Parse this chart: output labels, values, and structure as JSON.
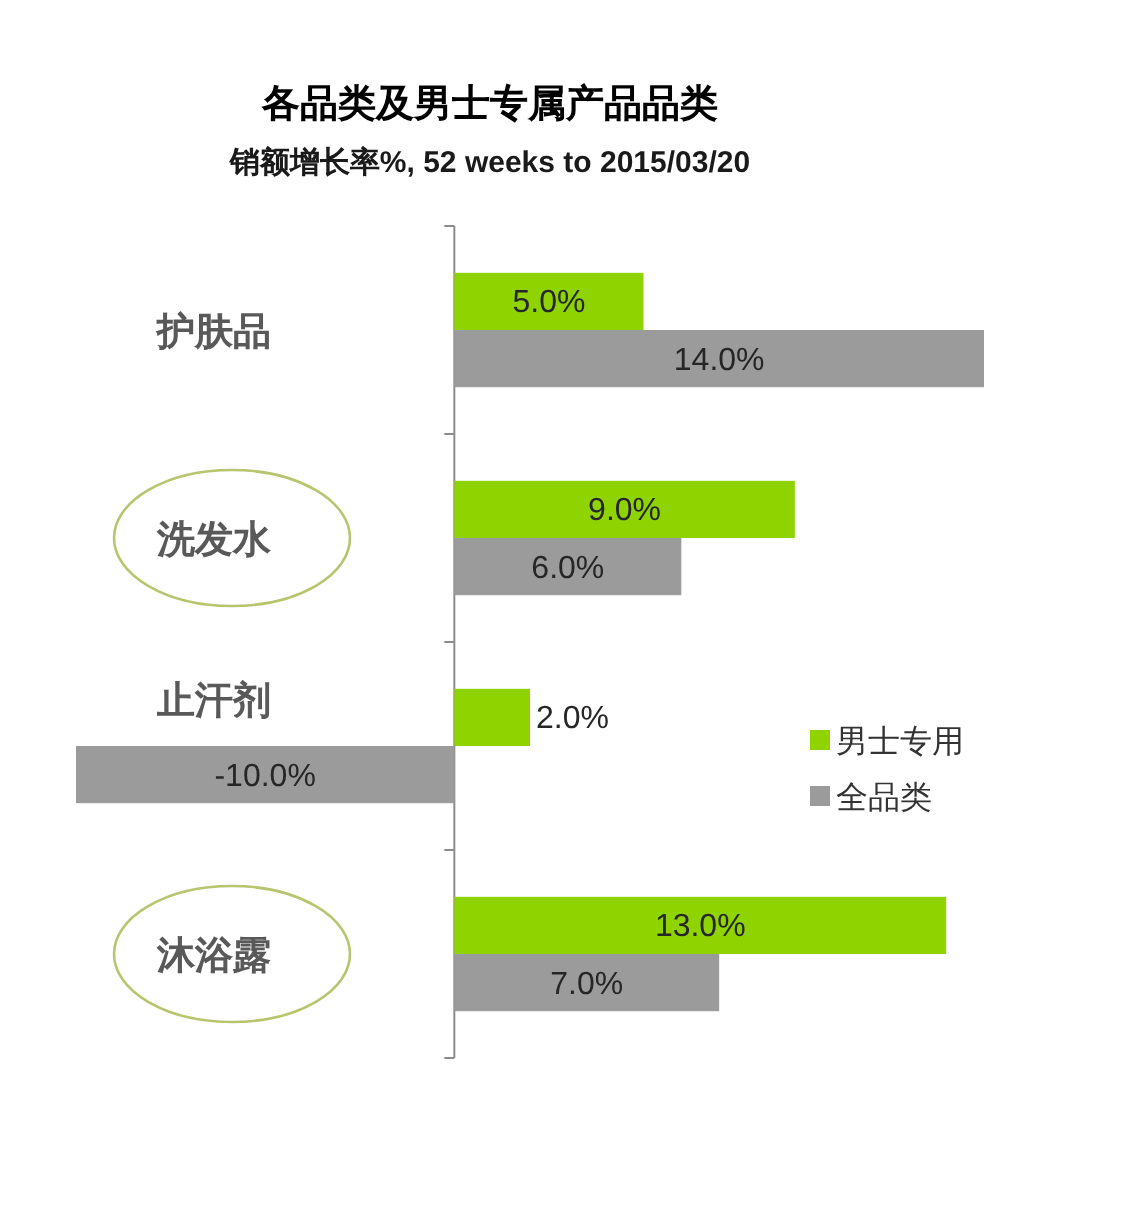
{
  "chart_data": {
    "type": "bar",
    "orientation": "horizontal",
    "title": "各品类及男士专属产品品类",
    "subtitle": "销额增长率%, 52 weeks to 2015/03/20",
    "categories": [
      "护肤品",
      "洗发水",
      "止汗剂",
      "沐浴露"
    ],
    "series": [
      {
        "name": "男士专用",
        "color": "#8fd400",
        "values": [
          5,
          9,
          2,
          13
        ],
        "value_labels": [
          "5.0%",
          "9.0%",
          "2.0%",
          "13.0%"
        ]
      },
      {
        "name": "全品类",
        "color": "#9b9b9b",
        "values": [
          14,
          6,
          -10,
          7
        ],
        "value_labels": [
          "14.0%",
          "6.0%",
          "-10.0%",
          "7.0%"
        ]
      }
    ],
    "legend": "right"
  }
}
